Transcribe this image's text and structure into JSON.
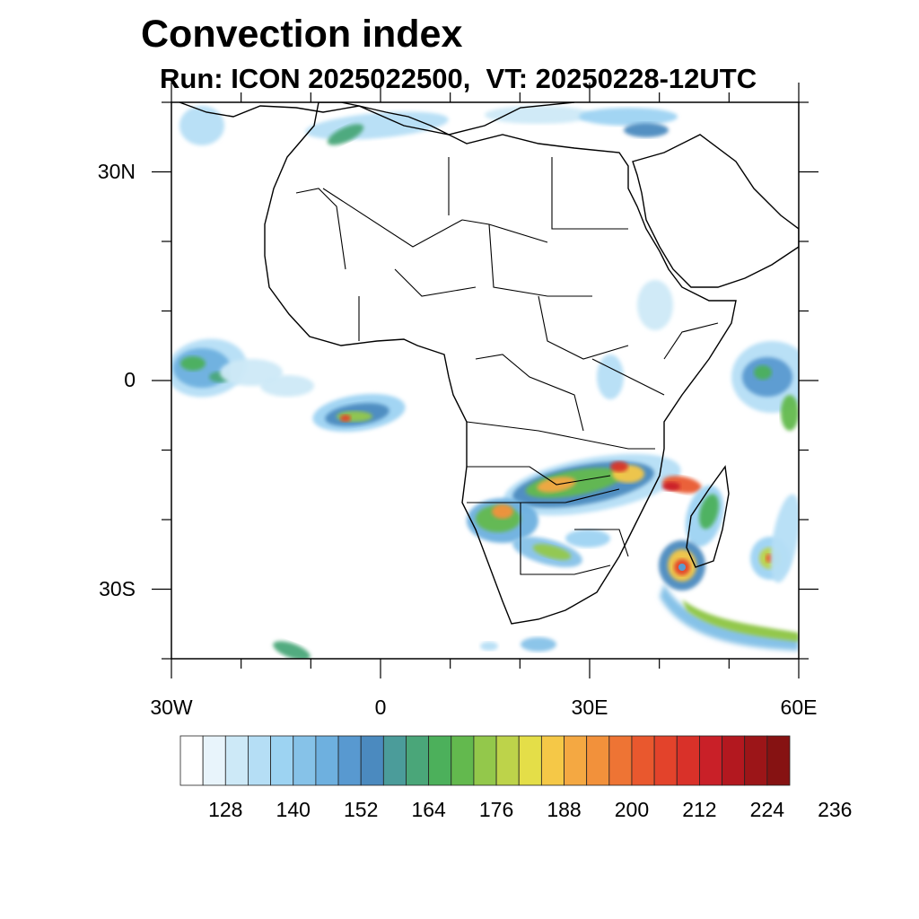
{
  "title": "Convection index",
  "subtitle": "Run: ICON 2025022500,  VT: 20250228-12UTC",
  "map": {
    "projection": "cylindrical equidistant",
    "lon_range": [
      -30,
      60
    ],
    "lat_range": [
      -40,
      40
    ],
    "lat_labels": [
      {
        "lat": 30,
        "text": "30N"
      },
      {
        "lat": 0,
        "text": "0"
      },
      {
        "lat": -30,
        "text": "30S"
      }
    ],
    "lon_labels": [
      {
        "lon": -30,
        "text": "30W"
      },
      {
        "lon": 0,
        "text": "0"
      },
      {
        "lon": 30,
        "text": "30E"
      },
      {
        "lon": 60,
        "text": "60E"
      }
    ],
    "features": [
      "coastlines",
      "country borders"
    ],
    "convection_areas": [
      {
        "region": "Atlantic near equator (west)",
        "intensity": "moderate"
      },
      {
        "region": "Gulf of Guinea offshore",
        "intensity": "moderate-high"
      },
      {
        "region": "Angola / Zambia / Malawi / Mozambique",
        "intensity": "high"
      },
      {
        "region": "Namibia / Botswana",
        "intensity": "high"
      },
      {
        "region": "Tropical cyclone SW of Madagascar",
        "intensity": "very high"
      },
      {
        "region": "Tropical cyclone near Mauritius",
        "intensity": "high"
      },
      {
        "region": "Southern Indian Ocean band",
        "intensity": "moderate"
      },
      {
        "region": "Mediterranean / Maghreb",
        "intensity": "low-moderate"
      }
    ]
  },
  "colorbar": {
    "colors": [
      "#ffffff",
      "#e8f4fb",
      "#cde9f7",
      "#b5def5",
      "#9dd3f2",
      "#86c2e8",
      "#6eb0df",
      "#5899d0",
      "#4b8abf",
      "#4b9c9a",
      "#4aa679",
      "#4cb05b",
      "#63b94e",
      "#93c84b",
      "#bdd34a",
      "#e4de48",
      "#f5c847",
      "#f4a842",
      "#f2913b",
      "#ee7434",
      "#e9582e",
      "#e3432b",
      "#d93129",
      "#c92028",
      "#b3181f",
      "#9c1518",
      "#861212"
    ],
    "tick_labels": [
      "128",
      "140",
      "152",
      "164",
      "176",
      "188",
      "200",
      "212",
      "224",
      "236"
    ]
  }
}
